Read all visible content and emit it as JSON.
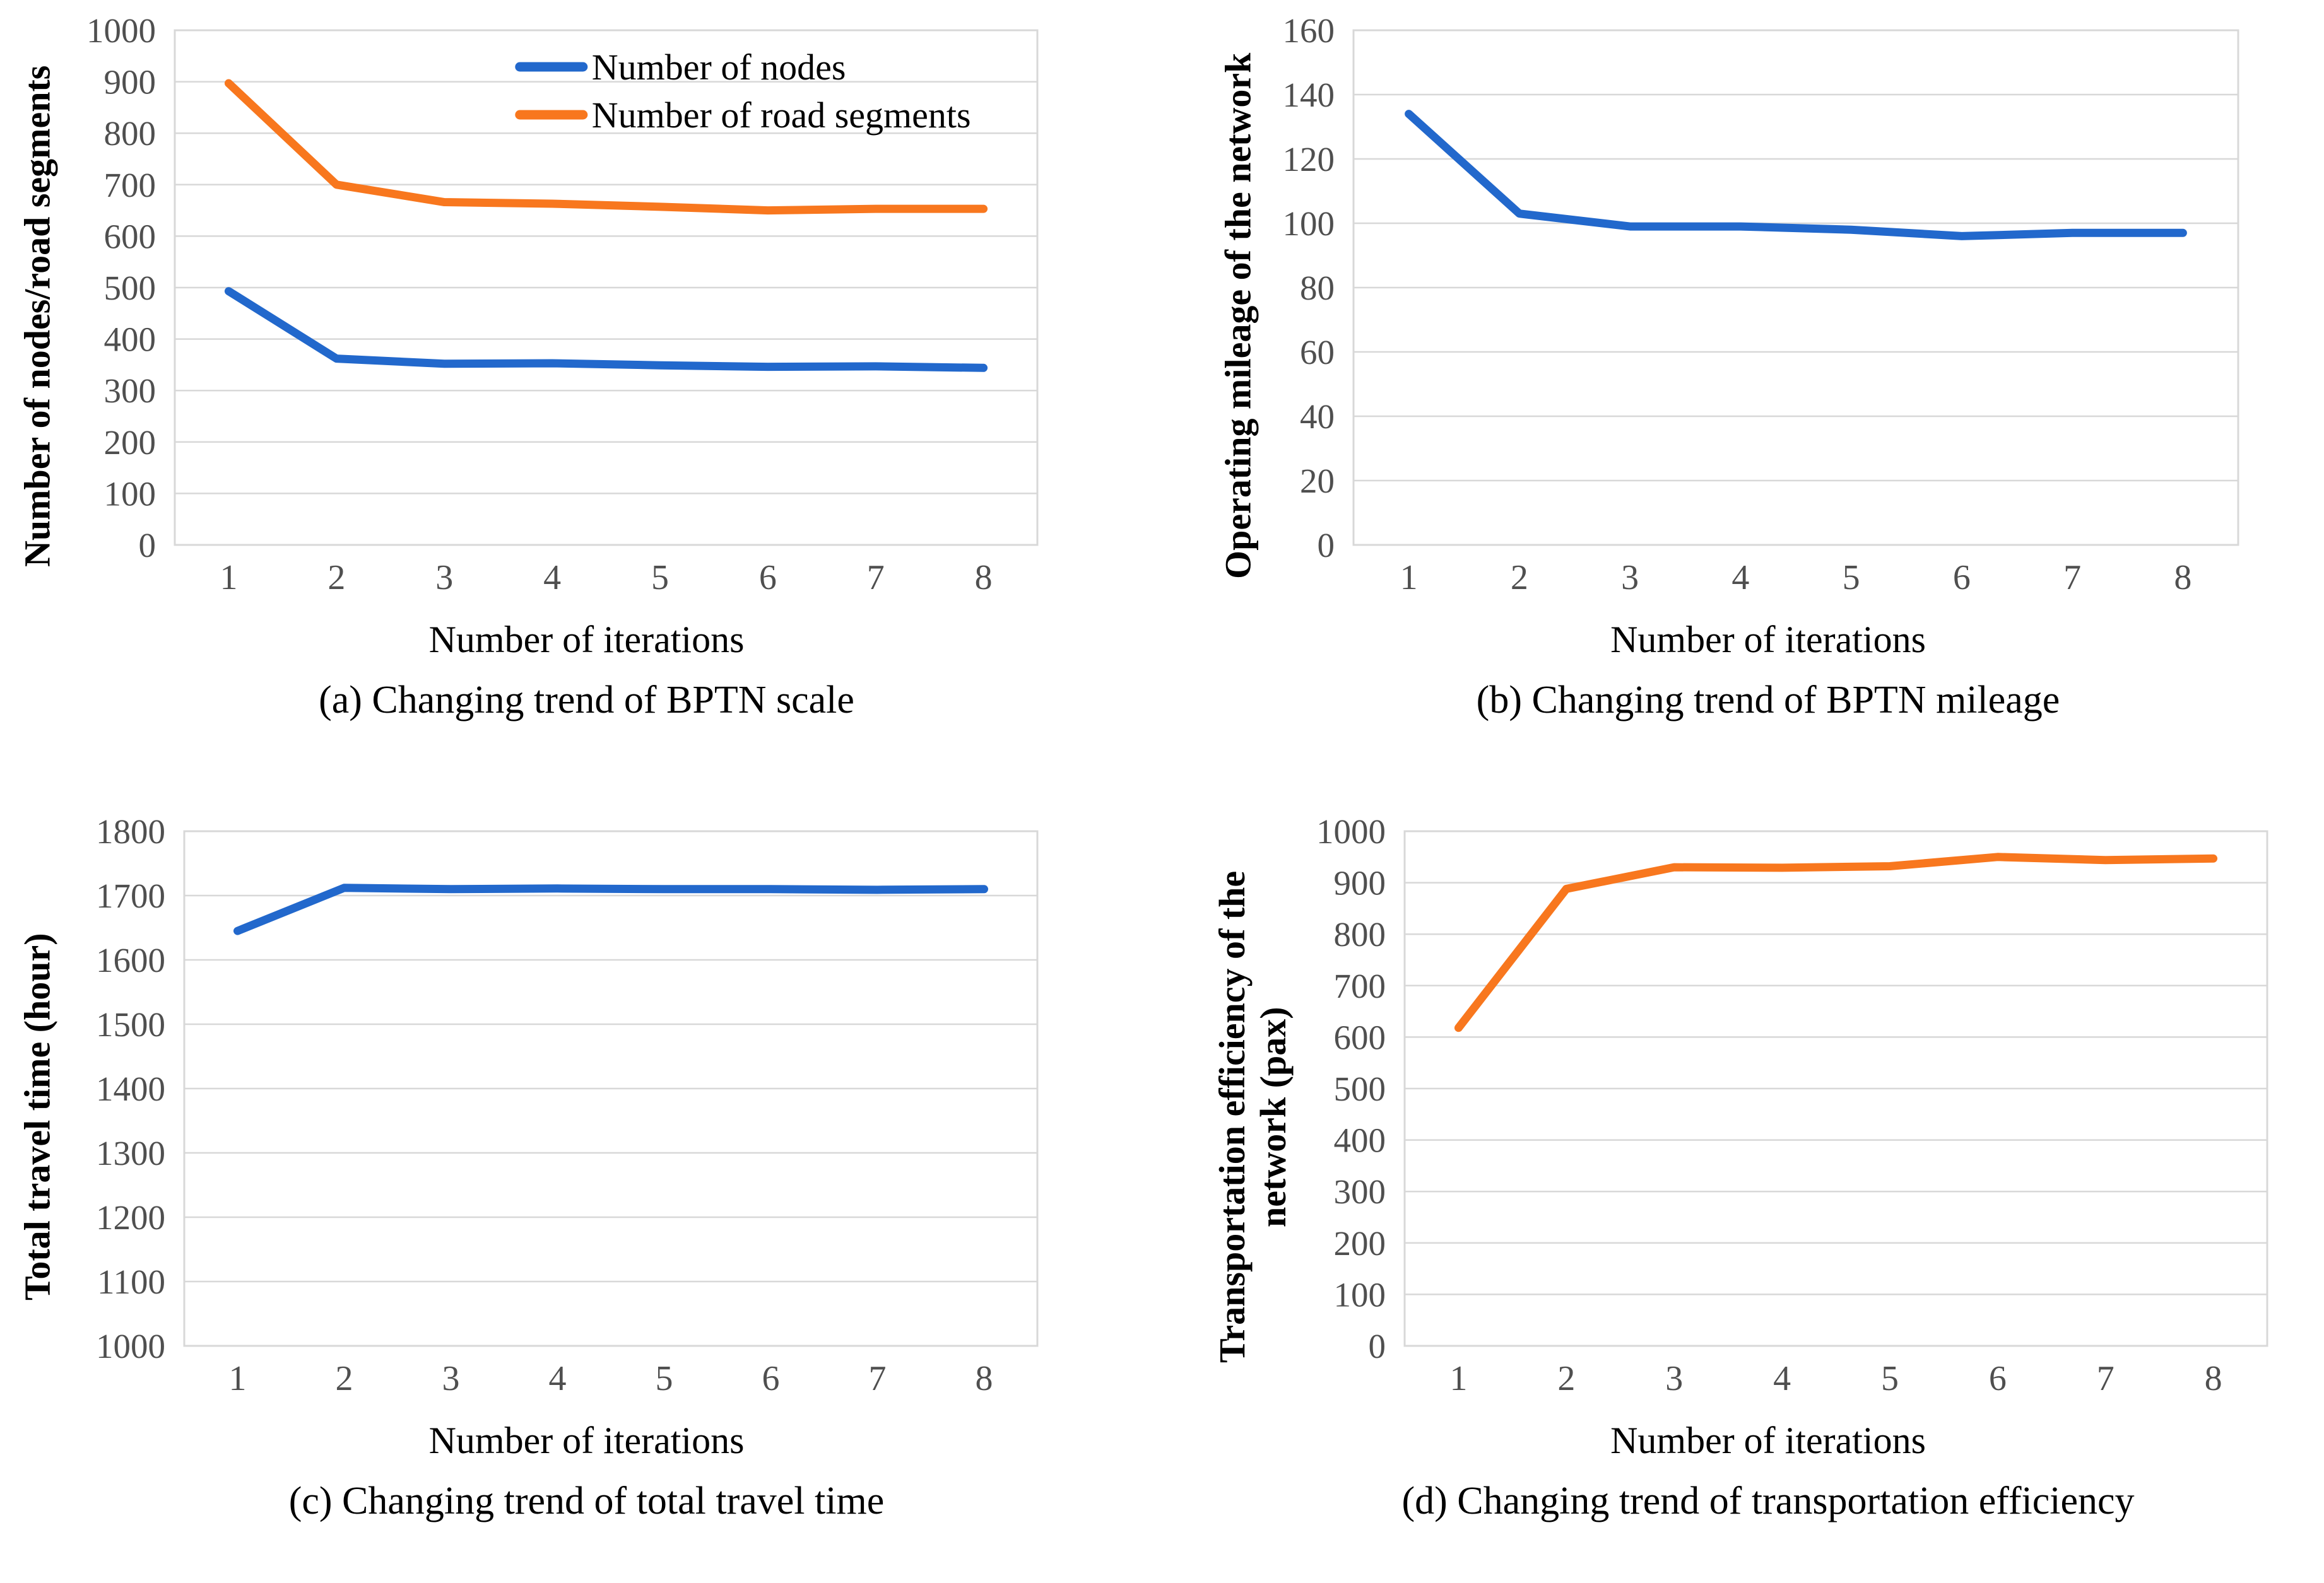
{
  "style": {
    "background": "#FFFFFF",
    "grid_color": "#D8D8D8",
    "tick_color": "#4F4F4F",
    "text_color": "#000000",
    "series_blue": "#2268CC",
    "series_orange": "#F8771E"
  },
  "chart_data": [
    {
      "id": "a",
      "type": "line",
      "caption": "(a) Changing trend of BPTN scale",
      "xlabel": "Number of iterations",
      "ylabel": "Number of nodes/road segments",
      "x": [
        "1",
        "2",
        "3",
        "4",
        "5",
        "6",
        "7",
        "8"
      ],
      "ylim": [
        0,
        1000
      ],
      "yticks": [
        0,
        100,
        200,
        300,
        400,
        500,
        600,
        700,
        800,
        900,
        1000
      ],
      "grid": true,
      "legend": {
        "show": true,
        "position": "top-inside"
      },
      "series": [
        {
          "name": "Number of nodes",
          "color": "#2268CC",
          "values": [
            493,
            362,
            352,
            353,
            349,
            346,
            347,
            344
          ]
        },
        {
          "name": "Number of road segments",
          "color": "#F8771E",
          "values": [
            897,
            700,
            666,
            663,
            657,
            650,
            653,
            653
          ]
        }
      ],
      "layout": {
        "margin_left": 175
      }
    },
    {
      "id": "b",
      "type": "line",
      "caption": "(b) Changing trend of BPTN mileage",
      "xlabel": "Number of iterations",
      "ylabel": "Operating mileage of the network",
      "x": [
        "1",
        "2",
        "3",
        "4",
        "5",
        "6",
        "7",
        "8"
      ],
      "ylim": [
        0,
        160
      ],
      "yticks": [
        0,
        20,
        40,
        60,
        80,
        100,
        120,
        140,
        160
      ],
      "grid": true,
      "legend": {
        "show": false
      },
      "series": [
        {
          "name": "",
          "color": "#2268CC",
          "values": [
            134,
            103,
            99,
            99,
            98,
            96,
            97,
            97
          ]
        }
      ],
      "layout": {
        "margin_left": 140
      }
    },
    {
      "id": "c",
      "type": "line",
      "caption": "(c) Changing trend of total travel time",
      "xlabel": "Number of iterations",
      "ylabel": "Total travel time (hour)",
      "x": [
        "1",
        "2",
        "3",
        "4",
        "5",
        "6",
        "7",
        "8"
      ],
      "ylim": [
        1000,
        1800
      ],
      "yticks": [
        1000,
        1100,
        1200,
        1300,
        1400,
        1500,
        1600,
        1700,
        1800
      ],
      "grid": true,
      "legend": {
        "show": false
      },
      "series": [
        {
          "name": "",
          "color": "#2268CC",
          "values": [
            1645,
            1712,
            1710,
            1711,
            1710,
            1710,
            1709,
            1710
          ]
        }
      ],
      "layout": {
        "margin_left": 190
      }
    },
    {
      "id": "d",
      "type": "line",
      "caption": "(d) Changing trend of transportation efficiency",
      "xlabel": "Number of iterations",
      "ylabel": "Transportation efficiency of the\nnetwork (pax)",
      "x": [
        "1",
        "2",
        "3",
        "4",
        "5",
        "6",
        "7",
        "8"
      ],
      "ylim": [
        0,
        1000
      ],
      "yticks": [
        0,
        100,
        200,
        300,
        400,
        500,
        600,
        700,
        800,
        900,
        1000
      ],
      "grid": true,
      "legend": {
        "show": false
      },
      "series": [
        {
          "name": "",
          "color": "#F8771E",
          "values": [
            618,
            888,
            930,
            929,
            932,
            950,
            944,
            947
          ]
        }
      ],
      "layout": {
        "margin_left": 175
      }
    }
  ]
}
